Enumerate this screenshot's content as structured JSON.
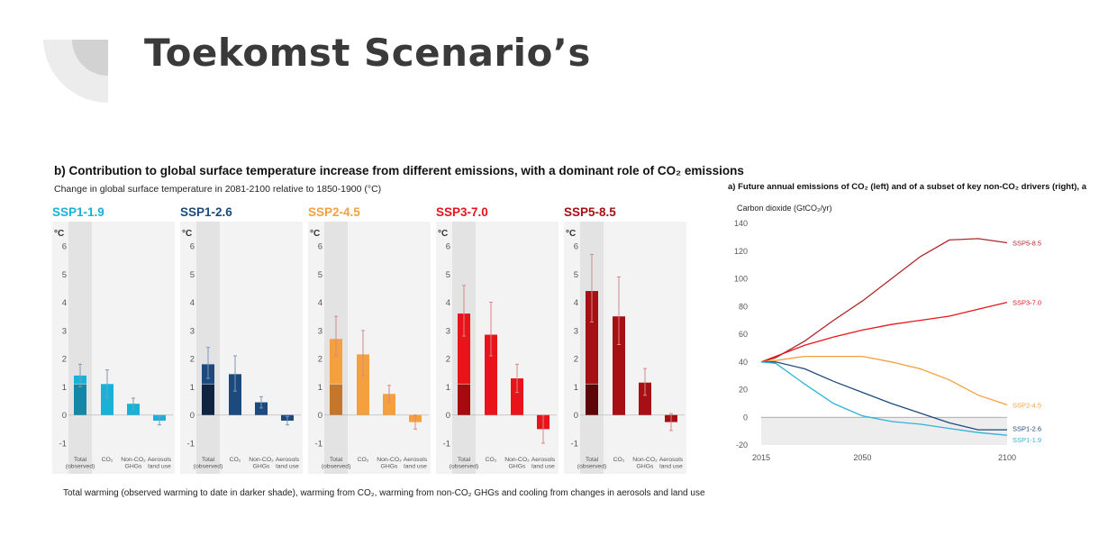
{
  "slide": {
    "title": "Toekomst Scenario’s",
    "accent_colors": {
      "corner_outer": "#ececec",
      "corner_inner": "#cfcfcf"
    }
  },
  "panel_b": {
    "title": "b) Contribution to global surface temperature increase from different emissions, with a dominant role of CO₂ emissions",
    "subtitle": "Change in global surface temperature in 2081-2100 relative to 1850-1900 (°C)",
    "caption": "Total warming (observed warming to date in darker shade), warming from CO₂, warming from non-CO₂ GHGs and cooling from changes in aerosols and land use"
  },
  "panel_a": {
    "title": "a) Future annual emissions of CO₂ (left) and of a subset of key non-CO₂ drivers (right), a",
    "unit_label": "Carbon dioxide (GtCO₂/yr)"
  },
  "chart_data": [
    {
      "type": "bar",
      "ylabel": "°C",
      "ylim": [
        -1,
        6
      ],
      "yticks": [
        "6",
        "5",
        "4",
        "3",
        "2",
        "1",
        "0",
        "-1"
      ],
      "categories": [
        [
          "Total",
          "(observed)"
        ],
        [
          "CO₂"
        ],
        [
          "Non-CO₂",
          "GHGs"
        ],
        [
          "Aerosols",
          "land use"
        ]
      ],
      "observed_warming": 1.1,
      "series": [
        {
          "name": "SSP1-1.9",
          "color": "#1ab1d9",
          "dark": "#1487a8",
          "values": [
            1.4,
            1.1,
            0.4,
            -0.2
          ],
          "err_low": [
            1.0,
            0.6,
            0.2,
            -0.35
          ],
          "err_high": [
            1.8,
            1.6,
            0.6,
            -0.05
          ]
        },
        {
          "name": "SSP1-2.6",
          "color": "#1d4a7e",
          "dark": "#0e2440",
          "values": [
            1.8,
            1.45,
            0.45,
            -0.2
          ],
          "err_low": [
            1.3,
            0.85,
            0.25,
            -0.35
          ],
          "err_high": [
            2.4,
            2.1,
            0.65,
            -0.05
          ]
        },
        {
          "name": "SSP2-4.5",
          "color": "#f4a03e",
          "dark": "#c4772a",
          "values": [
            2.7,
            2.15,
            0.75,
            -0.25
          ],
          "err_low": [
            2.1,
            1.4,
            0.45,
            -0.5
          ],
          "err_high": [
            3.5,
            3.0,
            1.05,
            0.0
          ]
        },
        {
          "name": "SSP3-7.0",
          "color": "#e8141a",
          "dark": "#a50a0f",
          "values": [
            3.6,
            2.85,
            1.3,
            -0.5
          ],
          "err_low": [
            2.8,
            2.1,
            0.8,
            -1.0
          ],
          "err_high": [
            4.6,
            4.0,
            1.8,
            0.0
          ]
        },
        {
          "name": "SSP5-8.5",
          "color": "#a60f14",
          "dark": "#5d0508",
          "values": [
            4.4,
            3.5,
            1.15,
            -0.25
          ],
          "err_low": [
            3.3,
            2.5,
            0.7,
            -0.55
          ],
          "err_high": [
            5.7,
            4.9,
            1.65,
            0.05
          ]
        }
      ],
      "grid": false
    },
    {
      "type": "line",
      "ylim": [
        -20,
        140
      ],
      "yticks": [
        140,
        120,
        100,
        80,
        60,
        40,
        20,
        0,
        -20
      ],
      "xlim": [
        2015,
        2100
      ],
      "xticks": [
        2015,
        2050,
        2100
      ],
      "x": [
        2015,
        2020,
        2030,
        2040,
        2050,
        2060,
        2070,
        2080,
        2090,
        2100
      ],
      "series": [
        {
          "name": "SSP5-8.5",
          "color": "#b0272c",
          "values": [
            40,
            43,
            55,
            70,
            84,
            100,
            116,
            128,
            129,
            126
          ]
        },
        {
          "name": "SSP3-7.0",
          "color": "#e8141a",
          "values": [
            40,
            44,
            52,
            58,
            63,
            67,
            70,
            73,
            78,
            83
          ]
        },
        {
          "name": "SSP2-4.5",
          "color": "#f4a03e",
          "values": [
            40,
            41,
            44,
            44,
            44,
            40,
            35,
            27,
            16,
            9
          ]
        },
        {
          "name": "SSP1-2.6",
          "color": "#1d4a7e",
          "values": [
            40,
            40,
            35,
            26,
            18,
            10,
            3,
            -4,
            -9,
            -9
          ]
        },
        {
          "name": "SSP1-1.9",
          "color": "#31b2d8",
          "values": [
            40,
            39,
            24,
            10,
            1,
            -3,
            -5,
            -8,
            -11,
            -13
          ]
        }
      ],
      "grid": false
    }
  ]
}
